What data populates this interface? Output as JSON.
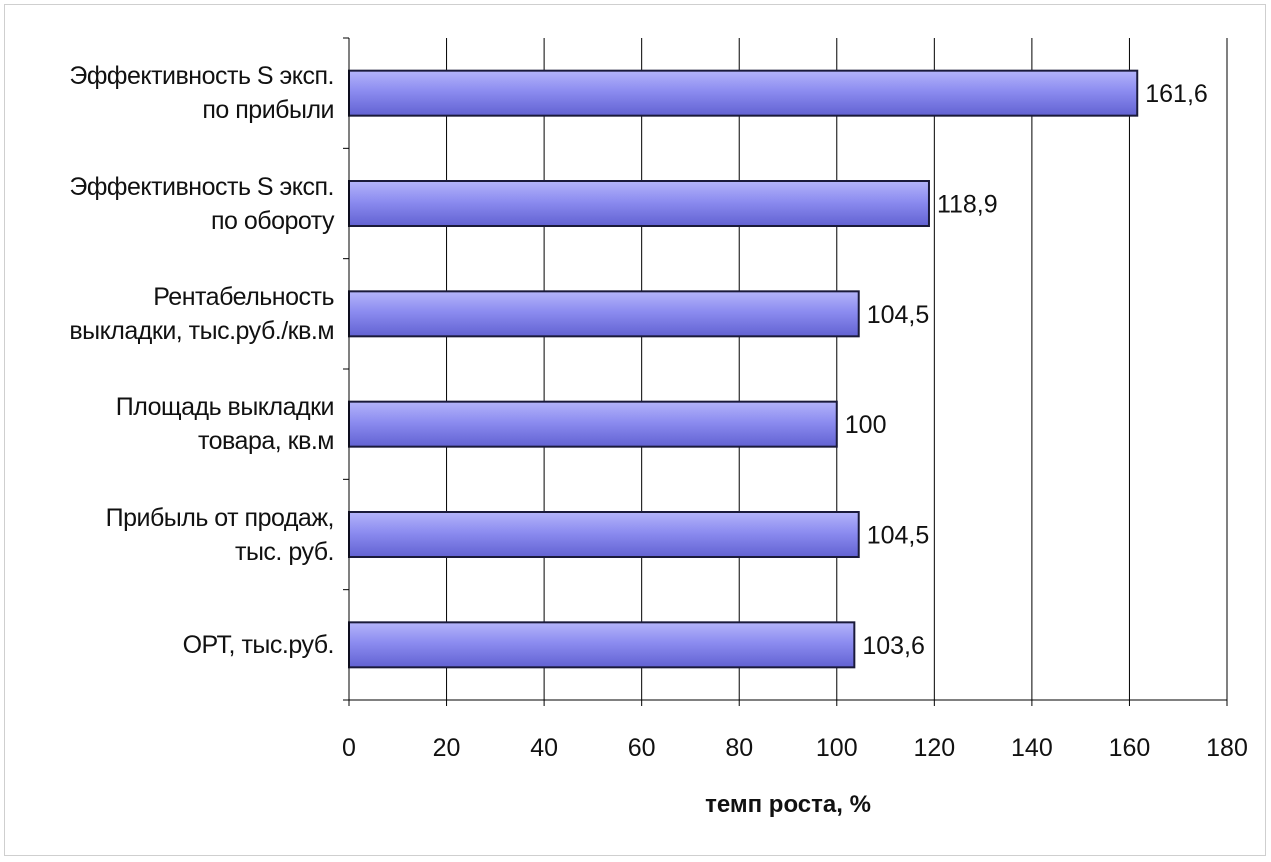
{
  "chart_data": {
    "type": "bar",
    "orientation": "horizontal",
    "categories": [
      "Эффективность S эксп.\nпо прибыли",
      "Эффективность S эксп.\nпо обороту",
      "Рентабельность\nвыкладки, тыс.руб./кв.м",
      "Площадь выкладки\nтовара, кв.м",
      "Прибыль от продаж,\nтыс. руб.",
      "ОРТ, тыс.руб."
    ],
    "values": [
      161.6,
      118.9,
      104.5,
      100,
      104.5,
      103.6
    ],
    "value_labels": [
      "161,6",
      "118,9",
      "104,5",
      "100",
      "104,5",
      "103,6"
    ],
    "xlabel": "темп роста, %",
    "ylabel": "",
    "title": "",
    "xlim": [
      0,
      180
    ],
    "xticks": [
      0,
      20,
      40,
      60,
      80,
      100,
      120,
      140,
      160,
      180
    ],
    "grid": "vertical",
    "bar_color": "#8c8cf0",
    "bar_color_dark": "#5a5ac8",
    "legend": "none"
  }
}
